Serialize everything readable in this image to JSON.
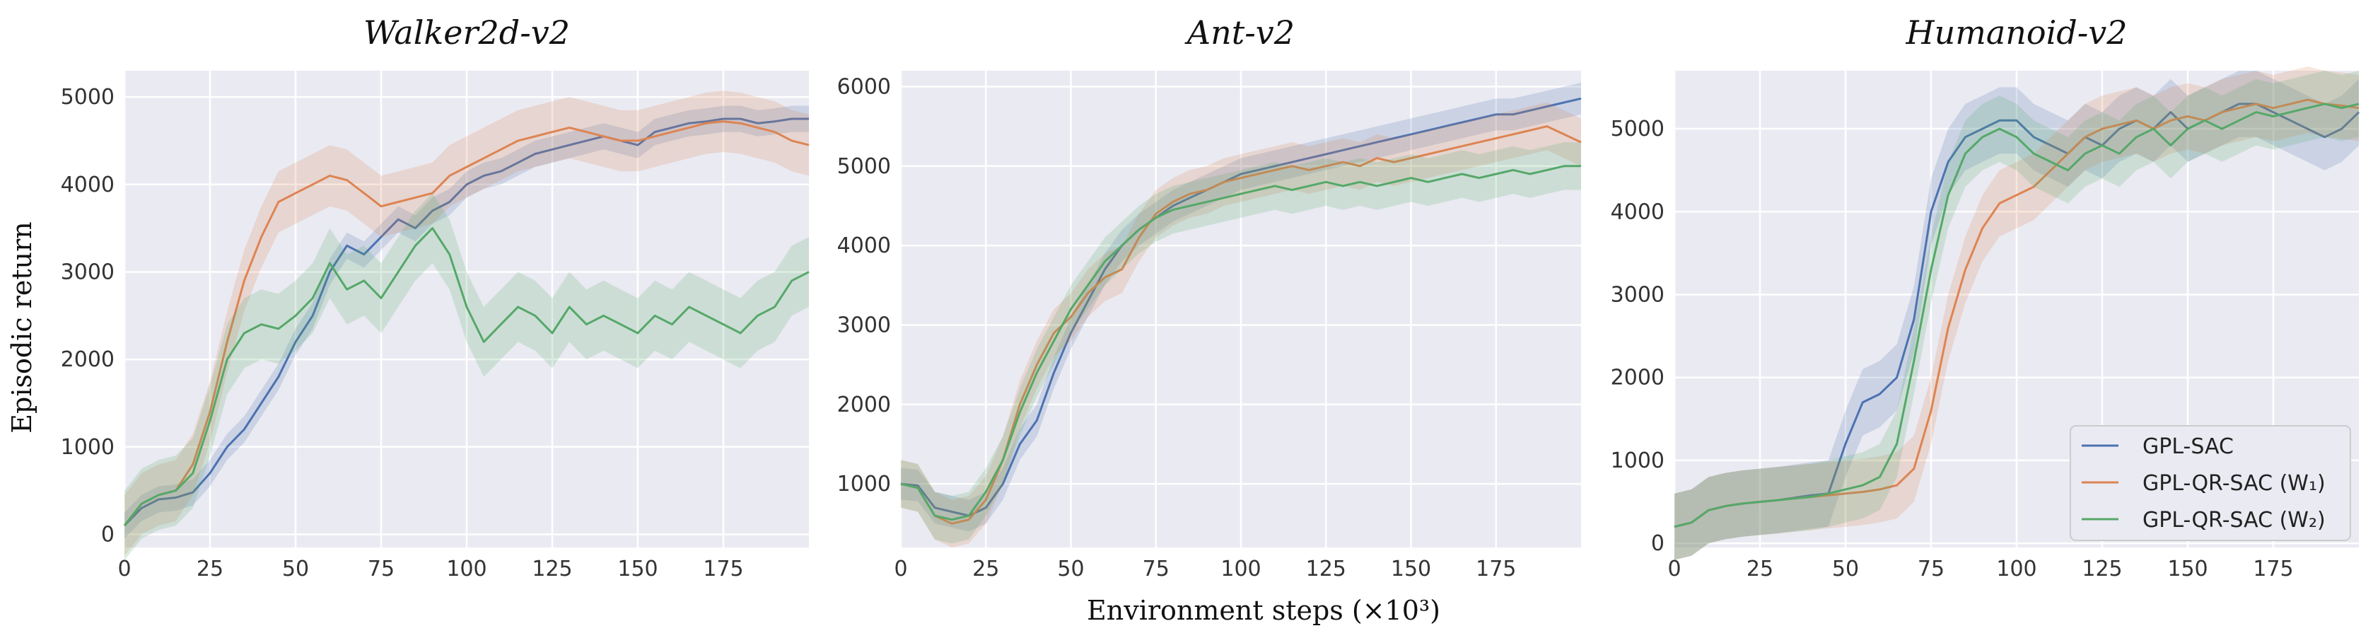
{
  "figure": {
    "xlabel": "Environment steps (×10³)",
    "ylabel": "Episodic return"
  },
  "legend": {
    "items": [
      {
        "label": "GPL-SAC",
        "color": "#4c72b0"
      },
      {
        "label": "GPL-QR-SAC (W₁)",
        "color": "#dd8452"
      },
      {
        "label": "GPL-QR-SAC (W₂)",
        "color": "#55a868"
      }
    ]
  },
  "chart_data": [
    {
      "type": "line",
      "title": "Walker2d-v2",
      "xlim": [
        0,
        200
      ],
      "ylim": [
        -150,
        5300
      ],
      "xticks": [
        0,
        25,
        50,
        75,
        100,
        125,
        150,
        175
      ],
      "yticks": [
        0,
        1000,
        2000,
        3000,
        4000,
        5000
      ],
      "series": [
        {
          "name": "GPL-SAC",
          "color": "#4c72b0",
          "band": 150,
          "x": [
            0,
            5,
            10,
            15,
            20,
            25,
            30,
            35,
            40,
            45,
            50,
            55,
            60,
            65,
            70,
            75,
            80,
            85,
            90,
            95,
            100,
            105,
            110,
            115,
            120,
            125,
            130,
            135,
            140,
            145,
            150,
            155,
            160,
            165,
            170,
            175,
            180,
            185,
            190,
            195,
            200
          ],
          "y": [
            100,
            300,
            400,
            420,
            480,
            700,
            1000,
            1200,
            1500,
            1800,
            2200,
            2500,
            3000,
            3300,
            3200,
            3400,
            3600,
            3500,
            3700,
            3800,
            4000,
            4100,
            4150,
            4250,
            4350,
            4400,
            4450,
            4500,
            4550,
            4500,
            4450,
            4600,
            4650,
            4700,
            4720,
            4750,
            4750,
            4700,
            4720,
            4750,
            4750
          ]
        },
        {
          "name": "GPL-QR-SAC (W₁)",
          "color": "#dd8452",
          "band": 350,
          "x": [
            0,
            5,
            10,
            15,
            20,
            25,
            30,
            35,
            40,
            45,
            50,
            55,
            60,
            65,
            70,
            75,
            80,
            85,
            90,
            95,
            100,
            105,
            110,
            115,
            120,
            125,
            130,
            135,
            140,
            145,
            150,
            155,
            160,
            165,
            170,
            175,
            180,
            185,
            190,
            195,
            200
          ],
          "y": [
            100,
            350,
            450,
            500,
            800,
            1400,
            2200,
            2900,
            3400,
            3800,
            3900,
            4000,
            4100,
            4050,
            3900,
            3750,
            3800,
            3850,
            3900,
            4100,
            4200,
            4300,
            4400,
            4500,
            4550,
            4600,
            4650,
            4600,
            4550,
            4500,
            4500,
            4550,
            4600,
            4650,
            4700,
            4720,
            4700,
            4650,
            4600,
            4500,
            4450
          ]
        },
        {
          "name": "GPL-QR-SAC (W₂)",
          "color": "#55a868",
          "band": 400,
          "x": [
            0,
            5,
            10,
            15,
            20,
            25,
            30,
            35,
            40,
            45,
            50,
            55,
            60,
            65,
            70,
            75,
            80,
            85,
            90,
            95,
            100,
            105,
            110,
            115,
            120,
            125,
            130,
            135,
            140,
            145,
            150,
            155,
            160,
            165,
            170,
            175,
            180,
            185,
            190,
            195,
            200
          ],
          "y": [
            100,
            350,
            450,
            500,
            700,
            1300,
            2000,
            2300,
            2400,
            2350,
            2500,
            2700,
            3100,
            2800,
            2900,
            2700,
            3000,
            3300,
            3500,
            3200,
            2600,
            2200,
            2400,
            2600,
            2500,
            2300,
            2600,
            2400,
            2500,
            2400,
            2300,
            2500,
            2400,
            2600,
            2500,
            2400,
            2300,
            2500,
            2600,
            2900,
            3000
          ]
        }
      ]
    },
    {
      "type": "line",
      "title": "Ant-v2",
      "xlim": [
        0,
        200
      ],
      "ylim": [
        200,
        6200
      ],
      "xticks": [
        0,
        25,
        50,
        75,
        100,
        125,
        150,
        175
      ],
      "yticks": [
        1000,
        2000,
        3000,
        4000,
        5000,
        6000
      ],
      "series": [
        {
          "name": "GPL-SAC",
          "color": "#4c72b0",
          "band": 200,
          "x": [
            0,
            5,
            10,
            15,
            20,
            25,
            30,
            35,
            40,
            45,
            50,
            55,
            60,
            65,
            70,
            75,
            80,
            85,
            90,
            95,
            100,
            105,
            110,
            115,
            120,
            125,
            130,
            135,
            140,
            145,
            150,
            155,
            160,
            165,
            170,
            175,
            180,
            185,
            190,
            195,
            200
          ],
          "y": [
            1000,
            980,
            700,
            650,
            600,
            700,
            1000,
            1500,
            1800,
            2400,
            2900,
            3300,
            3700,
            4000,
            4200,
            4350,
            4500,
            4600,
            4700,
            4800,
            4900,
            4950,
            5000,
            5050,
            5100,
            5150,
            5200,
            5250,
            5300,
            5350,
            5400,
            5450,
            5500,
            5550,
            5600,
            5650,
            5650,
            5700,
            5750,
            5800,
            5850
          ]
        },
        {
          "name": "GPL-QR-SAC (W₁)",
          "color": "#dd8452",
          "band": 300,
          "x": [
            0,
            5,
            10,
            15,
            20,
            25,
            30,
            35,
            40,
            45,
            50,
            55,
            60,
            65,
            70,
            75,
            80,
            85,
            90,
            95,
            100,
            105,
            110,
            115,
            120,
            125,
            130,
            135,
            140,
            145,
            150,
            155,
            160,
            165,
            170,
            175,
            180,
            185,
            190,
            195,
            200
          ],
          "y": [
            1000,
            950,
            600,
            500,
            550,
            800,
            1300,
            2000,
            2500,
            2900,
            3100,
            3400,
            3600,
            3700,
            4100,
            4400,
            4550,
            4650,
            4700,
            4800,
            4850,
            4900,
            4950,
            5000,
            4950,
            5000,
            5050,
            5000,
            5100,
            5050,
            5100,
            5150,
            5200,
            5250,
            5300,
            5350,
            5400,
            5450,
            5500,
            5400,
            5300
          ]
        },
        {
          "name": "GPL-QR-SAC (W₂)",
          "color": "#55a868",
          "band": 300,
          "x": [
            0,
            5,
            10,
            15,
            20,
            25,
            30,
            35,
            40,
            45,
            50,
            55,
            60,
            65,
            70,
            75,
            80,
            85,
            90,
            95,
            100,
            105,
            110,
            115,
            120,
            125,
            130,
            135,
            140,
            145,
            150,
            155,
            160,
            165,
            170,
            175,
            180,
            185,
            190,
            195,
            200
          ],
          "y": [
            1000,
            950,
            600,
            550,
            600,
            900,
            1300,
            1900,
            2400,
            2800,
            3200,
            3500,
            3800,
            4000,
            4200,
            4350,
            4450,
            4500,
            4550,
            4600,
            4650,
            4700,
            4750,
            4700,
            4750,
            4800,
            4750,
            4800,
            4750,
            4800,
            4850,
            4800,
            4850,
            4900,
            4850,
            4900,
            4950,
            4900,
            4950,
            5000,
            5000
          ]
        }
      ]
    },
    {
      "type": "line",
      "title": "Humanoid-v2",
      "xlim": [
        0,
        200
      ],
      "ylim": [
        -50,
        5700
      ],
      "xticks": [
        0,
        25,
        50,
        75,
        100,
        125,
        150,
        175
      ],
      "yticks": [
        0,
        1000,
        2000,
        3000,
        4000,
        5000
      ],
      "series": [
        {
          "name": "GPL-SAC",
          "color": "#4c72b0",
          "band": 400,
          "x": [
            0,
            5,
            10,
            15,
            20,
            25,
            30,
            35,
            40,
            45,
            50,
            55,
            60,
            65,
            70,
            75,
            80,
            85,
            90,
            95,
            100,
            105,
            110,
            115,
            120,
            125,
            130,
            135,
            140,
            145,
            150,
            155,
            160,
            165,
            170,
            175,
            180,
            185,
            190,
            195,
            200
          ],
          "y": [
            200,
            250,
            400,
            450,
            480,
            500,
            520,
            550,
            580,
            600,
            1200,
            1700,
            1800,
            2000,
            2700,
            4000,
            4600,
            4900,
            5000,
            5100,
            5100,
            4900,
            4800,
            4700,
            4900,
            4800,
            5000,
            5100,
            5000,
            5200,
            5000,
            5100,
            5200,
            5300,
            5300,
            5200,
            5100,
            5000,
            4900,
            5000,
            5200
          ]
        },
        {
          "name": "GPL-QR-SAC (W₁)",
          "color": "#dd8452",
          "band": 400,
          "x": [
            0,
            5,
            10,
            15,
            20,
            25,
            30,
            35,
            40,
            45,
            50,
            55,
            60,
            65,
            70,
            75,
            80,
            85,
            90,
            95,
            100,
            105,
            110,
            115,
            120,
            125,
            130,
            135,
            140,
            145,
            150,
            155,
            160,
            165,
            170,
            175,
            180,
            185,
            190,
            195,
            200
          ],
          "y": [
            200,
            250,
            400,
            450,
            480,
            500,
            520,
            540,
            560,
            580,
            600,
            620,
            650,
            700,
            900,
            1600,
            2600,
            3300,
            3800,
            4100,
            4200,
            4300,
            4500,
            4700,
            4900,
            5000,
            5050,
            5100,
            5000,
            5100,
            5150,
            5100,
            5200,
            5250,
            5300,
            5250,
            5300,
            5350,
            5300,
            5280,
            5250
          ]
        },
        {
          "name": "GPL-QR-SAC (W₂)",
          "color": "#55a868",
          "band": 400,
          "x": [
            0,
            5,
            10,
            15,
            20,
            25,
            30,
            35,
            40,
            45,
            50,
            55,
            60,
            65,
            70,
            75,
            80,
            85,
            90,
            95,
            100,
            105,
            110,
            115,
            120,
            125,
            130,
            135,
            140,
            145,
            150,
            155,
            160,
            165,
            170,
            175,
            180,
            185,
            190,
            195,
            200
          ],
          "y": [
            200,
            250,
            400,
            450,
            480,
            500,
            520,
            540,
            560,
            600,
            650,
            700,
            800,
            1200,
            2200,
            3300,
            4200,
            4700,
            4900,
            5000,
            4900,
            4700,
            4600,
            4500,
            4700,
            4800,
            4700,
            4900,
            5000,
            4800,
            5000,
            5100,
            5000,
            5100,
            5200,
            5150,
            5200,
            5250,
            5300,
            5250,
            5300
          ]
        }
      ]
    }
  ]
}
